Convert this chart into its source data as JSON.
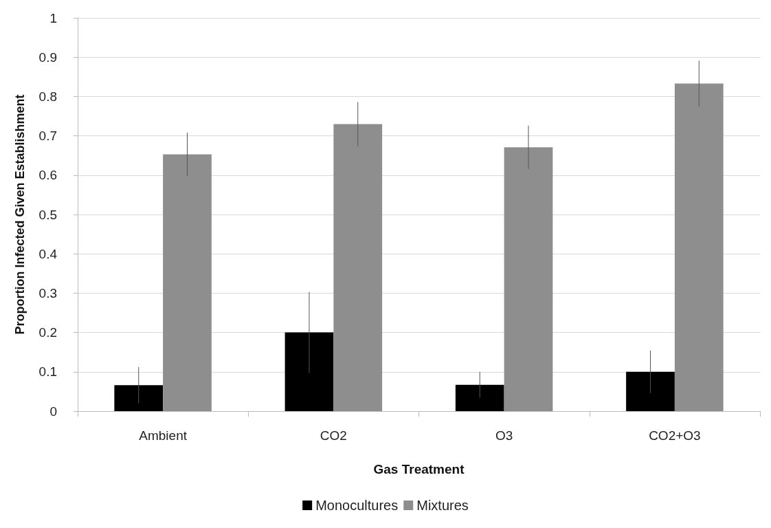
{
  "chart_data": {
    "type": "bar",
    "xlabel": "Gas Treatment",
    "ylabel": "Proportion Infected Given Establishment",
    "categories": [
      "Ambient",
      "CO2",
      "O3",
      "CO2+O3"
    ],
    "series": [
      {
        "name": "Monocultures",
        "color": "#000000",
        "values": [
          0.066,
          0.2,
          0.067,
          0.1
        ],
        "errors": [
          0.046,
          0.103,
          0.033,
          0.054
        ]
      },
      {
        "name": "Mixtures",
        "color": "#8e8e8e",
        "values": [
          0.653,
          0.73,
          0.671,
          0.833
        ],
        "errors": [
          0.055,
          0.056,
          0.055,
          0.058
        ]
      }
    ],
    "ylim": [
      0,
      1
    ],
    "yticks": [
      0,
      0.1,
      0.2,
      0.3,
      0.4,
      0.5,
      0.6,
      0.7,
      0.8,
      0.9,
      1
    ],
    "grid": "y",
    "legend": "bottom"
  }
}
